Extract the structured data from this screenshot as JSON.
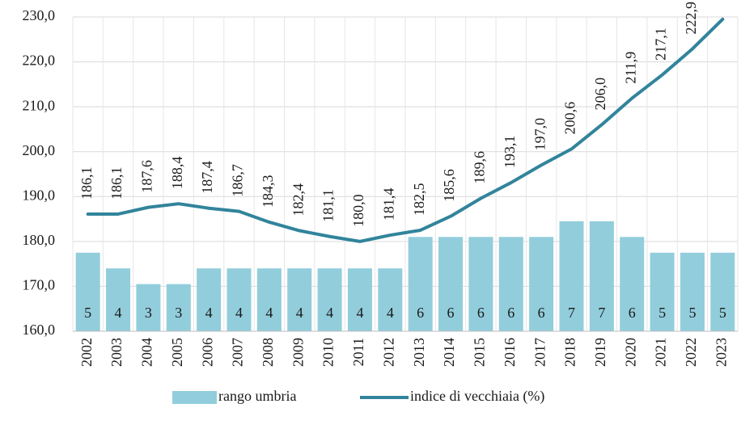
{
  "chart_data": {
    "type": "bar-line",
    "categories": [
      "2002",
      "2003",
      "2004",
      "2005",
      "2006",
      "2007",
      "2008",
      "2009",
      "2010",
      "2011",
      "2012",
      "2013",
      "2014",
      "2015",
      "2016",
      "2017",
      "2018",
      "2019",
      "2020",
      "2021",
      "2022",
      "2023"
    ],
    "series": [
      {
        "name": "rango umbria",
        "type": "bar",
        "axis": "y2",
        "color": "#92cddc",
        "values": [
          5,
          4,
          3,
          3,
          4,
          4,
          4,
          4,
          4,
          4,
          4,
          6,
          6,
          6,
          6,
          6,
          7,
          7,
          6,
          5,
          5,
          5
        ]
      },
      {
        "name": "indice di vecchiaia (%)",
        "type": "line",
        "color": "#31849b",
        "values": [
          186.1,
          186.1,
          187.6,
          188.4,
          187.4,
          186.7,
          184.3,
          182.4,
          181.1,
          180.0,
          181.4,
          182.5,
          185.6,
          189.6,
          193.1,
          197.0,
          200.6,
          206.0,
          211.9,
          217.1,
          222.9,
          229.5
        ],
        "value_labels": [
          "186,1",
          "186,1",
          "187,6",
          "188,4",
          "187,4",
          "186,7",
          "184,3",
          "182,4",
          "181,1",
          "180,0",
          "181,4",
          "182,5",
          "185,6",
          "189,6",
          "193,1",
          "197,0",
          "200,6",
          "206,0",
          "211,9",
          "217,1",
          "222,9",
          null
        ]
      }
    ],
    "ylim": [
      160,
      230
    ],
    "yticks": [
      {
        "value": 160,
        "label": "160,0"
      },
      {
        "value": 170,
        "label": "170,0"
      },
      {
        "value": 180,
        "label": "180,0"
      },
      {
        "value": 190,
        "label": "190,0"
      },
      {
        "value": 200,
        "label": "200,0"
      },
      {
        "value": 210,
        "label": "210,0"
      },
      {
        "value": 220,
        "label": "220,0"
      },
      {
        "value": 230,
        "label": "230,0"
      }
    ],
    "y2lim": [
      0,
      20
    ],
    "grid": true,
    "legend": "bottom"
  }
}
